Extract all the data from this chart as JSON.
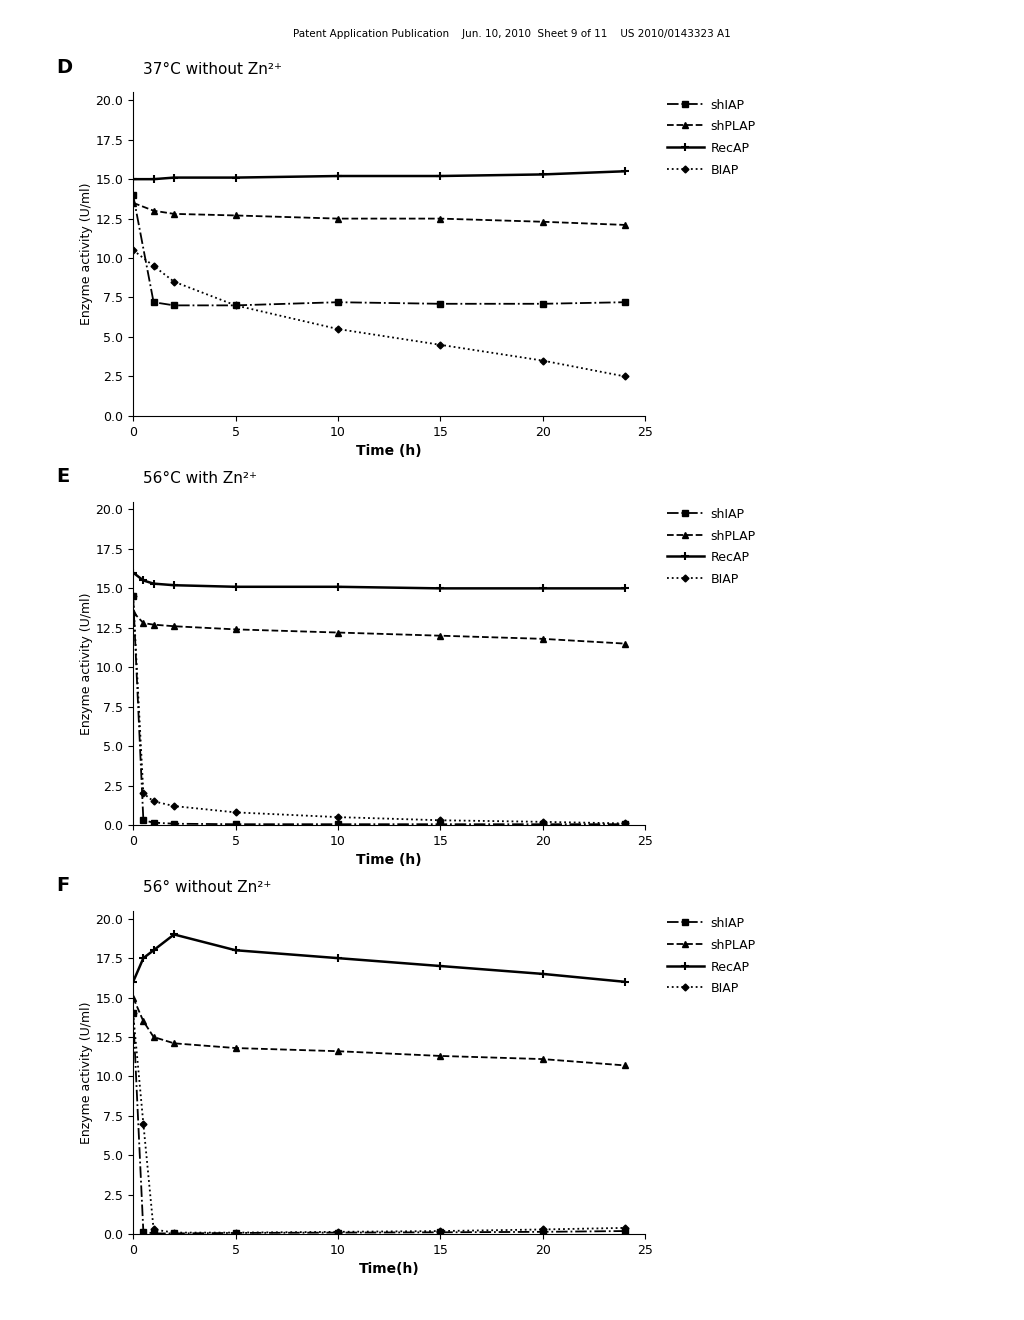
{
  "header_text": "Patent Application Publication    Jun. 10, 2010  Sheet 9 of 11    US 2010/0143323 A1",
  "fig_width": 10.24,
  "fig_height": 13.2,
  "dpi": 100,
  "background": "white",
  "panels": [
    {
      "label": "D",
      "title": "37°C without Zn²⁺",
      "xlabel": "Time (h)",
      "ylabel": "Enzyme activity (U/ml)",
      "xlim": [
        0,
        25
      ],
      "ylim": [
        0.0,
        20.5
      ],
      "yticks": [
        0.0,
        2.5,
        5.0,
        7.5,
        10.0,
        12.5,
        15.0,
        17.5,
        20.0
      ],
      "xticks": [
        0,
        5,
        10,
        15,
        20,
        25
      ],
      "series": {
        "shIAP": {
          "x": [
            0,
            1,
            2,
            5,
            10,
            15,
            20,
            24
          ],
          "y": [
            14.0,
            7.2,
            7.0,
            7.0,
            7.2,
            7.1,
            7.1,
            7.2
          ]
        },
        "shPLAP": {
          "x": [
            0,
            1,
            2,
            5,
            10,
            15,
            20,
            24
          ],
          "y": [
            13.5,
            13.0,
            12.8,
            12.7,
            12.5,
            12.5,
            12.3,
            12.1
          ]
        },
        "RecAP": {
          "x": [
            0,
            1,
            2,
            5,
            10,
            15,
            20,
            24
          ],
          "y": [
            15.0,
            15.0,
            15.1,
            15.1,
            15.2,
            15.2,
            15.3,
            15.5
          ]
        },
        "BIAP": {
          "x": [
            0,
            1,
            2,
            5,
            10,
            15,
            20,
            24
          ],
          "y": [
            10.5,
            9.5,
            8.5,
            7.0,
            5.5,
            4.5,
            3.5,
            2.5
          ]
        }
      }
    },
    {
      "label": "E",
      "title": "56°C with Zn²⁺",
      "xlabel": "Time (h)",
      "ylabel": "Enzyme activity (U/ml)",
      "xlim": [
        0,
        25
      ],
      "ylim": [
        0.0,
        20.5
      ],
      "yticks": [
        0.0,
        2.5,
        5.0,
        7.5,
        10.0,
        12.5,
        15.0,
        17.5,
        20.0
      ],
      "xticks": [
        0,
        5,
        10,
        15,
        20,
        25
      ],
      "series": {
        "shIAP": {
          "x": [
            0,
            0.5,
            1,
            2,
            5,
            10,
            15,
            20,
            24
          ],
          "y": [
            14.5,
            0.3,
            0.15,
            0.08,
            0.05,
            0.05,
            0.05,
            0.05,
            0.05
          ]
        },
        "shPLAP": {
          "x": [
            0,
            0.5,
            1,
            2,
            5,
            10,
            15,
            20,
            24
          ],
          "y": [
            13.5,
            12.8,
            12.7,
            12.6,
            12.4,
            12.2,
            12.0,
            11.8,
            11.5
          ]
        },
        "RecAP": {
          "x": [
            0,
            0.5,
            1,
            2,
            5,
            10,
            15,
            20,
            24
          ],
          "y": [
            16.0,
            15.5,
            15.3,
            15.2,
            15.1,
            15.1,
            15.0,
            15.0,
            15.0
          ]
        },
        "BIAP": {
          "x": [
            0,
            0.5,
            1,
            2,
            5,
            10,
            15,
            20,
            24
          ],
          "y": [
            14.5,
            2.0,
            1.5,
            1.2,
            0.8,
            0.5,
            0.3,
            0.2,
            0.1
          ]
        }
      }
    },
    {
      "label": "F",
      "title": "56° without Zn²⁺",
      "xlabel": "Time(h)",
      "ylabel": "Enzyme activity (U/ml)",
      "xlim": [
        0,
        25
      ],
      "ylim": [
        0.0,
        20.5
      ],
      "yticks": [
        0.0,
        2.5,
        5.0,
        7.5,
        10.0,
        12.5,
        15.0,
        17.5,
        20.0
      ],
      "xticks": [
        0,
        5,
        10,
        15,
        20,
        25
      ],
      "series": {
        "shIAP": {
          "x": [
            0,
            0.5,
            1,
            2,
            5,
            10,
            15,
            20,
            24
          ],
          "y": [
            14.0,
            0.15,
            0.05,
            0.05,
            0.08,
            0.1,
            0.12,
            0.15,
            0.2
          ]
        },
        "shPLAP": {
          "x": [
            0,
            0.5,
            1,
            2,
            5,
            10,
            15,
            20,
            24
          ],
          "y": [
            15.0,
            13.5,
            12.5,
            12.1,
            11.8,
            11.6,
            11.3,
            11.1,
            10.7
          ]
        },
        "RecAP": {
          "x": [
            0,
            0.5,
            1,
            2,
            5,
            10,
            15,
            20,
            24
          ],
          "y": [
            16.0,
            17.5,
            18.0,
            19.0,
            18.0,
            17.5,
            17.0,
            16.5,
            16.0
          ]
        },
        "BIAP": {
          "x": [
            0,
            0.5,
            1,
            2,
            5,
            10,
            15,
            20,
            24
          ],
          "y": [
            14.0,
            7.0,
            0.3,
            0.1,
            0.1,
            0.15,
            0.2,
            0.3,
            0.4
          ]
        }
      }
    }
  ],
  "legend_entries": [
    {
      "name": "shIAP",
      "ls": "-.",
      "marker": "s"
    },
    {
      "name": "shPLAP",
      "ls": "--",
      "marker": "^"
    },
    {
      "name": "RecAP",
      "ls": "-",
      "marker": "+"
    },
    {
      "name": "BIAP",
      "ls": ":",
      "marker": "D"
    }
  ],
  "series_order": [
    "RecAP",
    "shPLAP",
    "shIAP",
    "BIAP"
  ]
}
